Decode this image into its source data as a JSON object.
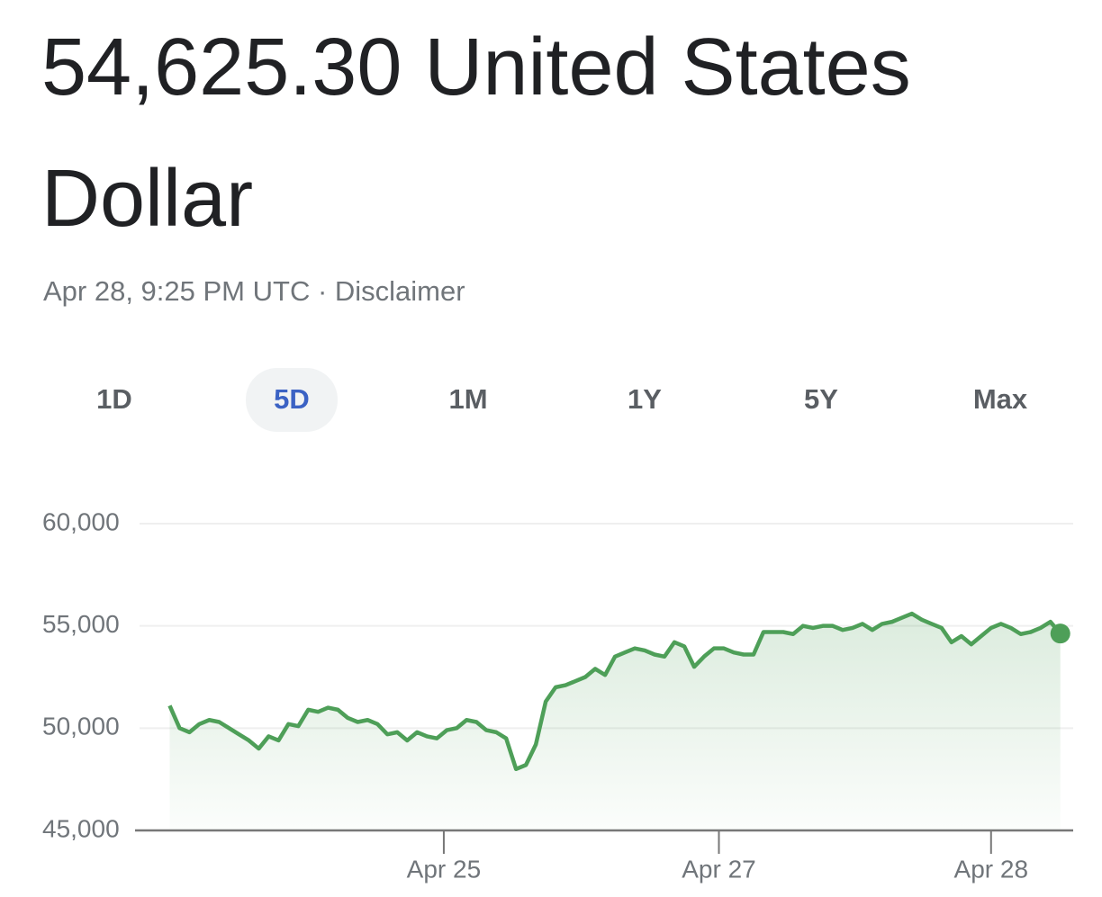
{
  "header": {
    "title": "54,625.30 United States Dollar",
    "subtitle": "Apr 28, 9:25 PM UTC · Disclaimer"
  },
  "tabs": {
    "items": [
      "1D",
      "5D",
      "1M",
      "1Y",
      "5Y",
      "Max"
    ],
    "selected": 1
  },
  "chart_data": {
    "type": "line",
    "x": [
      0,
      1,
      2,
      3,
      4,
      5,
      6,
      7,
      8,
      9,
      10,
      11,
      12,
      13,
      14,
      15,
      16,
      17,
      18,
      19,
      20,
      21,
      22,
      23,
      24,
      25,
      26,
      27,
      28,
      29,
      30,
      31,
      32,
      33,
      34,
      35,
      36,
      37,
      38,
      39,
      40,
      41,
      42,
      43,
      44,
      45,
      46,
      47,
      48,
      49,
      50,
      51,
      52,
      53,
      54,
      55,
      56,
      57,
      58,
      59,
      60,
      61,
      62,
      63,
      64,
      65,
      66,
      67,
      68,
      69,
      70,
      71,
      72,
      73,
      74,
      75,
      76,
      77,
      78,
      79,
      80,
      81,
      82,
      83,
      84,
      85,
      86,
      87,
      88,
      89,
      90
    ],
    "series": [
      {
        "color": "#4e9f58",
        "values": [
          51100,
          50000,
          49800,
          50200,
          50400,
          50300,
          50000,
          49700,
          49400,
          49000,
          49600,
          49400,
          50200,
          50100,
          50900,
          50800,
          51000,
          50900,
          50500,
          50300,
          50400,
          50200,
          49700,
          49800,
          49400,
          49800,
          49600,
          49500,
          49900,
          50000,
          50400,
          50300,
          49900,
          49800,
          49500,
          48000,
          48200,
          49200,
          51300,
          52000,
          52100,
          52300,
          52500,
          52900,
          52600,
          53500,
          53700,
          53900,
          53800,
          53600,
          53500,
          54200,
          54000,
          53000,
          53500,
          53900,
          53900,
          53700,
          53600,
          53600,
          54700,
          54700,
          54700,
          54600,
          55000,
          54900,
          55000,
          55000,
          54800,
          54900,
          55100,
          54800,
          55100,
          55200,
          55400,
          55600,
          55300,
          55100,
          54900,
          54200,
          54500,
          54100,
          54500,
          54900,
          55100,
          54900,
          54600,
          54700,
          54900,
          55200,
          54625.3
        ]
      }
    ],
    "xlim": [
      -3.5,
      91.3
    ],
    "xticks": [
      {
        "value": 27.7,
        "label": "Apr 25"
      },
      {
        "value": 55.5,
        "label": "Apr 27"
      },
      {
        "value": 83,
        "label": "Apr 28"
      }
    ],
    "ylim": [
      45000,
      60000
    ],
    "yticks": [
      {
        "value": 45000,
        "label": "45,000"
      },
      {
        "value": 50000,
        "label": "50,000"
      },
      {
        "value": 55000,
        "label": "55,000"
      },
      {
        "value": 60000,
        "label": "60,000"
      }
    ],
    "grid": true
  }
}
